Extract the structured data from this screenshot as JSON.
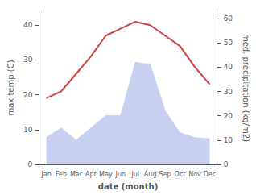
{
  "chart_data": {
    "type": "line",
    "categories": [
      "Jan",
      "Feb",
      "Mar",
      "Apr",
      "May",
      "Jun",
      "Jul",
      "Aug",
      "Sep",
      "Oct",
      "Nov",
      "Dec"
    ],
    "xlabel": "date (month)",
    "ylabel": "max temp (C)",
    "y2label": "med. precipitation (kg/m2)",
    "series": [
      {
        "type": "area",
        "axis": "y2",
        "color": "#c8d0f0",
        "values": [
          11,
          15,
          10,
          15,
          20,
          20,
          42,
          41,
          22,
          13,
          11,
          10.5
        ]
      },
      {
        "type": "line",
        "color": "#cc4444",
        "values": [
          19,
          21,
          26,
          31,
          37,
          39,
          41,
          40,
          37,
          34,
          28,
          23
        ]
      }
    ],
    "ylim": [
      0,
      44
    ],
    "yticks": [
      0,
      10,
      20,
      30,
      40
    ],
    "y2lim": [
      0,
      63
    ],
    "y2ticks": [
      0,
      10,
      20,
      30,
      40,
      50,
      60
    ],
    "grid": false
  }
}
